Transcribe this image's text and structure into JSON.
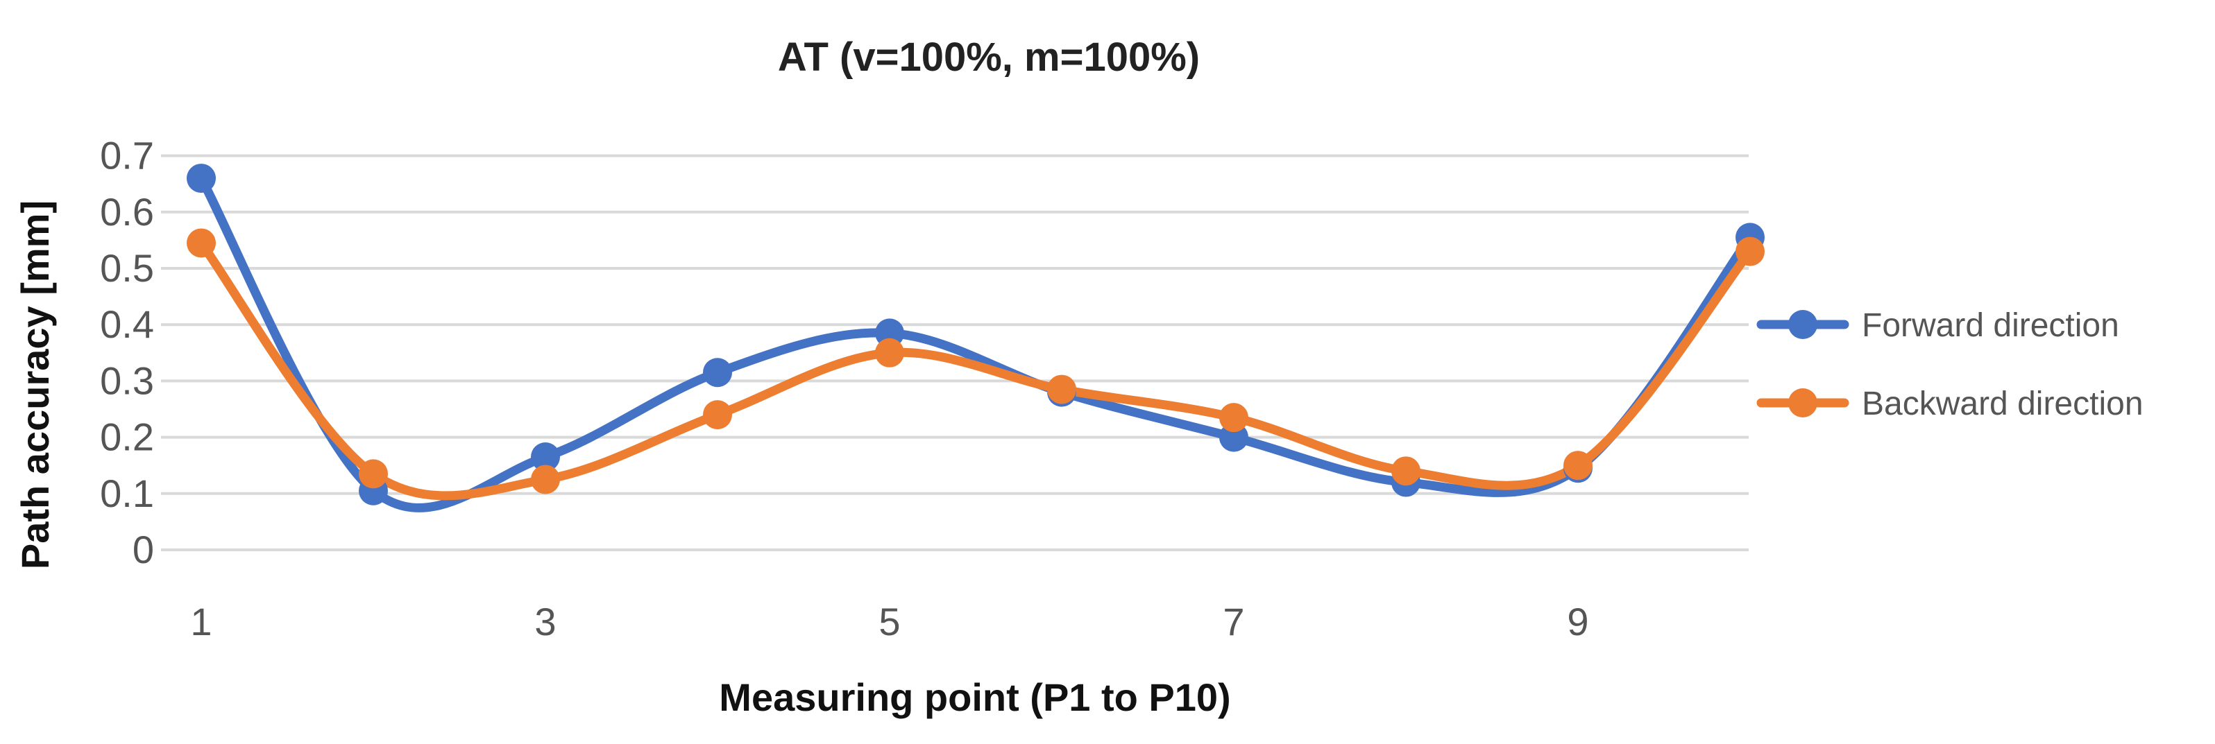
{
  "chart_data": {
    "type": "line",
    "smooth": true,
    "title": "AT (v=100%, m=100%)",
    "xlabel": "Measuring point (P1 to P10)",
    "ylabel": "Path accuracy [mm]",
    "x": [
      1,
      2,
      3,
      4,
      5,
      6,
      7,
      8,
      9,
      10
    ],
    "x_tick_labels": [
      "1",
      "3",
      "5",
      "7",
      "9"
    ],
    "x_tick_values": [
      1,
      3,
      5,
      7,
      9
    ],
    "ylim": [
      0,
      0.7
    ],
    "y_tick_labels": [
      "0",
      "0.1",
      "0.2",
      "0.3",
      "0.4",
      "0.5",
      "0.6",
      "0.7"
    ],
    "y_tick_values": [
      0,
      0.1,
      0.2,
      0.3,
      0.4,
      0.5,
      0.6,
      0.7
    ],
    "grid": true,
    "legend_position": "right",
    "series": [
      {
        "name": "Forward direction",
        "color": "#4472C4",
        "values": [
          0.66,
          0.105,
          0.165,
          0.315,
          0.385,
          0.28,
          0.2,
          0.12,
          0.145,
          0.555
        ]
      },
      {
        "name": "Backward direction",
        "color": "#ED7D31",
        "values": [
          0.545,
          0.135,
          0.125,
          0.24,
          0.35,
          0.285,
          0.235,
          0.14,
          0.15,
          0.53
        ]
      }
    ]
  }
}
